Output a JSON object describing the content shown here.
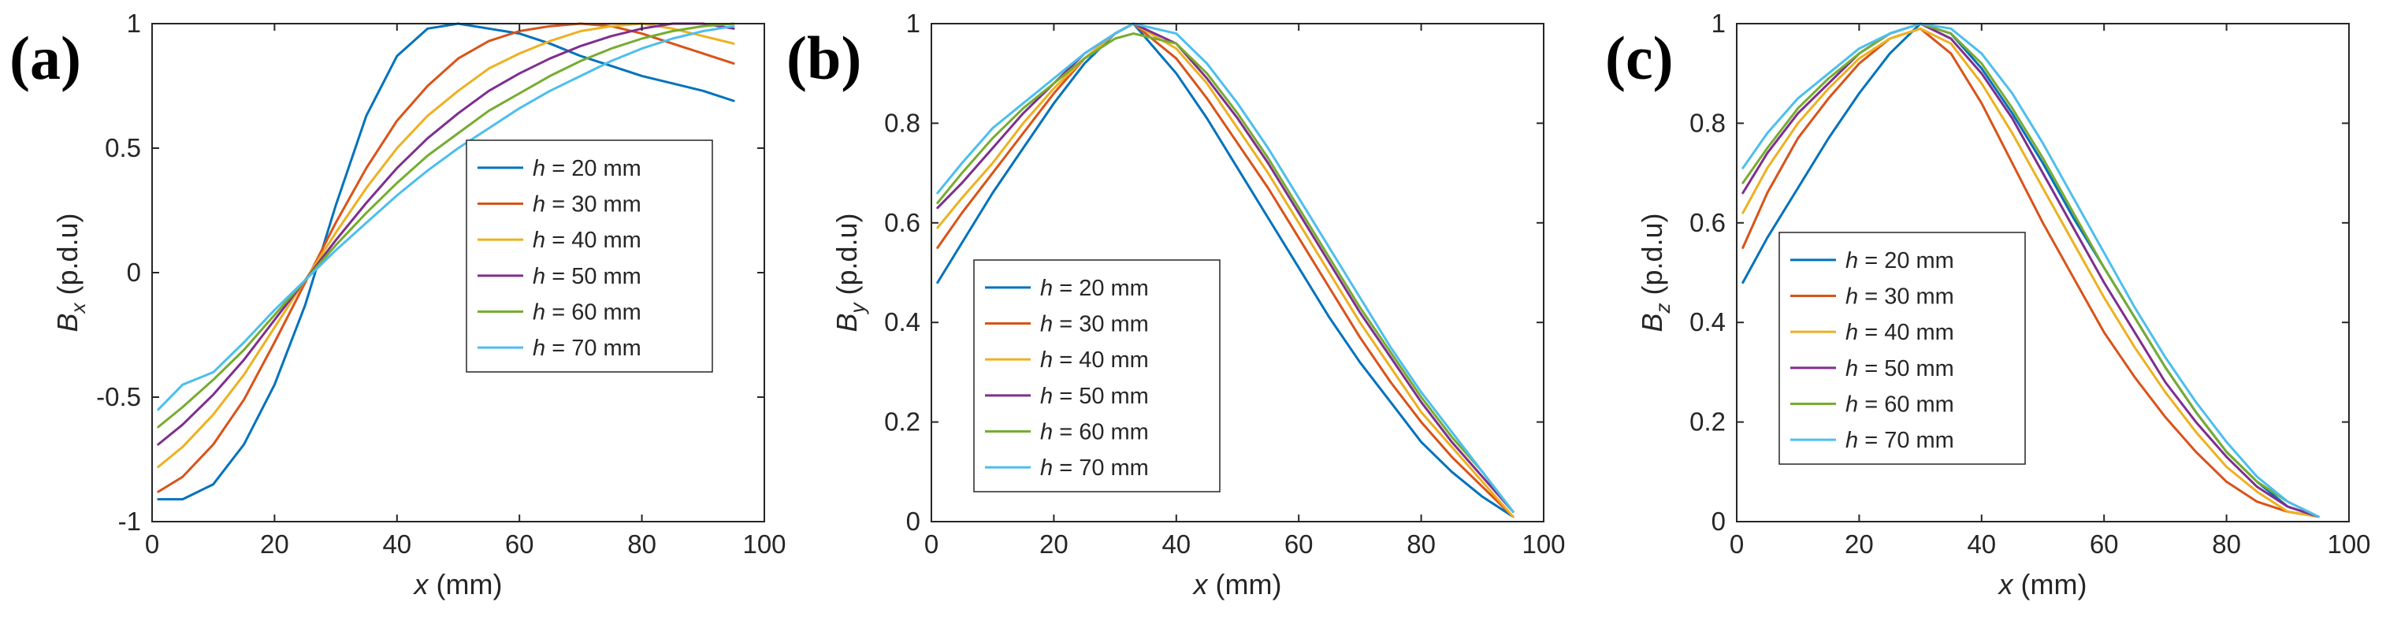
{
  "chart_data": [
    {
      "type": "line",
      "panel_label": "(a)",
      "xlabel_var": "x",
      "xlabel_unit": " (mm)",
      "ylabel_var": "B",
      "ylabel_sub": "x",
      "ylabel_unit": " (p.d.u)",
      "xlim": [
        0,
        100
      ],
      "ylim": [
        -1,
        1
      ],
      "xticks": [
        0,
        20,
        40,
        60,
        80,
        100
      ],
      "xtick_labels": [
        "0",
        "20",
        "40",
        "60",
        "80",
        "100"
      ],
      "yticks": [
        -1,
        -0.5,
        0,
        0.5,
        1
      ],
      "ytick_labels": [
        "-1",
        "-0.5",
        "0",
        "0.5",
        "1"
      ],
      "legend_position": "center-right",
      "series": [
        {
          "name": "h = 20 mm",
          "label_var": "h",
          "label_rest": " = 20 mm",
          "color": "#0072BD",
          "x": [
            1,
            5,
            10,
            15,
            20,
            25,
            30,
            35,
            40,
            45,
            50,
            55,
            60,
            65,
            70,
            75,
            80,
            85,
            90,
            95
          ],
          "y": [
            -0.91,
            -0.91,
            -0.85,
            -0.69,
            -0.45,
            -0.13,
            0.27,
            0.63,
            0.87,
            0.98,
            1.0,
            0.98,
            0.96,
            0.92,
            0.87,
            0.83,
            0.79,
            0.76,
            0.73,
            0.69
          ]
        },
        {
          "name": "h = 30 mm",
          "label_var": "h",
          "label_rest": " = 30 mm",
          "color": "#D95319",
          "x": [
            1,
            5,
            10,
            15,
            20,
            25,
            30,
            35,
            40,
            45,
            50,
            55,
            60,
            65,
            70,
            75,
            80,
            85,
            90,
            95
          ],
          "y": [
            -0.88,
            -0.82,
            -0.69,
            -0.51,
            -0.28,
            -0.04,
            0.2,
            0.42,
            0.61,
            0.75,
            0.86,
            0.93,
            0.97,
            0.99,
            1.0,
            0.99,
            0.96,
            0.92,
            0.88,
            0.84
          ]
        },
        {
          "name": "h = 40 mm",
          "label_var": "h",
          "label_rest": " = 40 mm",
          "color": "#EDB120",
          "x": [
            1,
            5,
            10,
            15,
            20,
            25,
            30,
            35,
            40,
            45,
            50,
            55,
            60,
            65,
            70,
            75,
            80,
            85,
            90,
            95
          ],
          "y": [
            -0.78,
            -0.7,
            -0.57,
            -0.41,
            -0.22,
            -0.03,
            0.16,
            0.34,
            0.5,
            0.63,
            0.73,
            0.82,
            0.88,
            0.93,
            0.97,
            0.99,
            1.0,
            0.98,
            0.95,
            0.92
          ]
        },
        {
          "name": "h = 50 mm",
          "label_var": "h",
          "label_rest": " = 50 mm",
          "color": "#7E2F8E",
          "x": [
            1,
            5,
            10,
            15,
            20,
            25,
            30,
            35,
            40,
            45,
            50,
            55,
            60,
            65,
            70,
            75,
            80,
            85,
            90,
            95
          ],
          "y": [
            -0.69,
            -0.61,
            -0.49,
            -0.35,
            -0.19,
            -0.03,
            0.13,
            0.28,
            0.42,
            0.54,
            0.64,
            0.73,
            0.8,
            0.86,
            0.91,
            0.95,
            0.98,
            1.0,
            1.0,
            0.98
          ]
        },
        {
          "name": "h = 60 mm",
          "label_var": "h",
          "label_rest": " = 60 mm",
          "color": "#77AC30",
          "x": [
            1,
            5,
            10,
            15,
            20,
            25,
            30,
            35,
            40,
            45,
            50,
            55,
            60,
            65,
            70,
            75,
            80,
            85,
            90,
            95
          ],
          "y": [
            -0.62,
            -0.54,
            -0.43,
            -0.31,
            -0.17,
            -0.03,
            0.11,
            0.24,
            0.36,
            0.47,
            0.56,
            0.65,
            0.72,
            0.79,
            0.85,
            0.9,
            0.94,
            0.97,
            0.99,
            1.0
          ]
        },
        {
          "name": "h = 70 mm",
          "label_var": "h",
          "label_rest": " = 70 mm",
          "color": "#4DBEEE",
          "x": [
            1,
            5,
            10,
            15,
            20,
            25,
            30,
            35,
            40,
            45,
            50,
            55,
            60,
            65,
            70,
            75,
            80,
            85,
            90,
            95
          ],
          "y": [
            -0.55,
            -0.45,
            -0.4,
            -0.28,
            -0.15,
            -0.03,
            0.09,
            0.2,
            0.31,
            0.41,
            0.5,
            0.58,
            0.66,
            0.73,
            0.79,
            0.85,
            0.9,
            0.94,
            0.97,
            0.99
          ]
        }
      ]
    },
    {
      "type": "line",
      "panel_label": "(b)",
      "xlabel_var": "x",
      "xlabel_unit": " (mm)",
      "ylabel_var": "B",
      "ylabel_sub": "y",
      "ylabel_unit": " (p.d.u)",
      "xlim": [
        0,
        100
      ],
      "ylim": [
        0,
        1
      ],
      "xticks": [
        0,
        20,
        40,
        60,
        80,
        100
      ],
      "xtick_labels": [
        "0",
        "20",
        "40",
        "60",
        "80",
        "100"
      ],
      "yticks": [
        0,
        0.2,
        0.4,
        0.6,
        0.8,
        1
      ],
      "ytick_labels": [
        "0",
        "0.2",
        "0.4",
        "0.6",
        "0.8",
        "1"
      ],
      "legend_position": "bottom-left",
      "series": [
        {
          "name": "h = 20 mm",
          "label_var": "h",
          "label_rest": " = 20 mm",
          "color": "#0072BD",
          "x": [
            1,
            5,
            10,
            15,
            20,
            25,
            30,
            33,
            40,
            45,
            50,
            55,
            60,
            65,
            70,
            75,
            80,
            85,
            90,
            95
          ],
          "y": [
            0.48,
            0.56,
            0.66,
            0.75,
            0.84,
            0.92,
            0.98,
            1.0,
            0.9,
            0.81,
            0.71,
            0.61,
            0.51,
            0.41,
            0.32,
            0.24,
            0.16,
            0.1,
            0.05,
            0.01
          ]
        },
        {
          "name": "h = 30 mm",
          "label_var": "h",
          "label_rest": " = 30 mm",
          "color": "#D95319",
          "x": [
            1,
            5,
            10,
            15,
            20,
            25,
            30,
            33,
            40,
            45,
            50,
            55,
            60,
            65,
            70,
            75,
            80,
            85,
            90,
            95
          ],
          "y": [
            0.55,
            0.62,
            0.7,
            0.78,
            0.86,
            0.93,
            0.98,
            1.0,
            0.93,
            0.85,
            0.76,
            0.67,
            0.57,
            0.47,
            0.37,
            0.28,
            0.2,
            0.13,
            0.07,
            0.01
          ]
        },
        {
          "name": "h = 40 mm",
          "label_var": "h",
          "label_rest": " = 40 mm",
          "color": "#EDB120",
          "x": [
            1,
            5,
            10,
            15,
            20,
            25,
            30,
            33,
            40,
            45,
            50,
            55,
            60,
            65,
            70,
            75,
            80,
            85,
            90,
            95
          ],
          "y": [
            0.59,
            0.65,
            0.72,
            0.8,
            0.87,
            0.93,
            0.98,
            1.0,
            0.95,
            0.88,
            0.79,
            0.7,
            0.6,
            0.5,
            0.4,
            0.31,
            0.22,
            0.15,
            0.08,
            0.01
          ]
        },
        {
          "name": "h = 50 mm",
          "label_var": "h",
          "label_rest": " = 50 mm",
          "color": "#7E2F8E",
          "x": [
            1,
            5,
            10,
            15,
            20,
            25,
            30,
            33,
            40,
            45,
            50,
            55,
            60,
            65,
            70,
            75,
            80,
            85,
            90,
            95
          ],
          "y": [
            0.63,
            0.68,
            0.75,
            0.82,
            0.88,
            0.94,
            0.98,
            1.0,
            0.96,
            0.89,
            0.81,
            0.72,
            0.62,
            0.52,
            0.42,
            0.33,
            0.24,
            0.16,
            0.09,
            0.02
          ]
        },
        {
          "name": "h = 60 mm",
          "label_var": "h",
          "label_rest": " = 60 mm",
          "color": "#77AC30",
          "x": [
            1,
            5,
            10,
            15,
            20,
            25,
            30,
            33,
            40,
            45,
            50,
            55,
            60,
            65,
            70,
            75,
            80,
            85,
            90,
            95
          ],
          "y": [
            0.64,
            0.7,
            0.77,
            0.83,
            0.88,
            0.93,
            0.97,
            0.98,
            0.96,
            0.9,
            0.82,
            0.73,
            0.63,
            0.53,
            0.43,
            0.34,
            0.25,
            0.17,
            0.1,
            0.02
          ]
        },
        {
          "name": "h = 70 mm",
          "label_var": "h",
          "label_rest": " = 70 mm",
          "color": "#4DBEEE",
          "x": [
            1,
            5,
            10,
            15,
            20,
            25,
            30,
            33,
            40,
            45,
            50,
            55,
            60,
            65,
            70,
            75,
            80,
            85,
            90,
            95
          ],
          "y": [
            0.66,
            0.72,
            0.79,
            0.84,
            0.89,
            0.94,
            0.98,
            1.0,
            0.98,
            0.92,
            0.84,
            0.75,
            0.65,
            0.55,
            0.45,
            0.35,
            0.26,
            0.18,
            0.1,
            0.02
          ]
        }
      ]
    },
    {
      "type": "line",
      "panel_label": "(c)",
      "xlabel_var": "x",
      "xlabel_unit": " (mm)",
      "ylabel_var": "B",
      "ylabel_sub": "z",
      "ylabel_unit": " (p.d.u)",
      "xlim": [
        0,
        100
      ],
      "ylim": [
        0,
        1
      ],
      "xticks": [
        0,
        20,
        40,
        60,
        80,
        100
      ],
      "xtick_labels": [
        "0",
        "20",
        "40",
        "60",
        "80",
        "100"
      ],
      "yticks": [
        0,
        0.2,
        0.4,
        0.6,
        0.8,
        1
      ],
      "ytick_labels": [
        "0",
        "0.2",
        "0.4",
        "0.6",
        "0.8",
        "1"
      ],
      "legend_position": "bottom-left",
      "series": [
        {
          "name": "h = 20 mm",
          "label_var": "h",
          "label_rest": " = 20 mm",
          "color": "#0072BD",
          "x": [
            1,
            5,
            10,
            15,
            20,
            25,
            30,
            35,
            40,
            45,
            50,
            55,
            60,
            65,
            70,
            75,
            80,
            85,
            90,
            95
          ],
          "y": [
            0.48,
            0.57,
            0.67,
            0.77,
            0.86,
            0.94,
            1.0,
            0.98,
            0.91,
            0.82,
            0.72,
            0.61,
            0.51,
            0.41,
            0.31,
            0.22,
            0.14,
            0.08,
            0.03,
            0.01
          ]
        },
        {
          "name": "h = 30 mm",
          "label_var": "h",
          "label_rest": " = 30 mm",
          "color": "#D95319",
          "x": [
            1,
            5,
            10,
            15,
            20,
            25,
            30,
            35,
            40,
            45,
            50,
            55,
            60,
            65,
            70,
            75,
            80,
            85,
            90,
            95
          ],
          "y": [
            0.55,
            0.66,
            0.77,
            0.85,
            0.92,
            0.97,
            0.99,
            0.94,
            0.84,
            0.72,
            0.6,
            0.49,
            0.38,
            0.29,
            0.21,
            0.14,
            0.08,
            0.04,
            0.02,
            0.01
          ]
        },
        {
          "name": "h = 40 mm",
          "label_var": "h",
          "label_rest": " = 40 mm",
          "color": "#EDB120",
          "x": [
            1,
            5,
            10,
            15,
            20,
            25,
            30,
            35,
            40,
            45,
            50,
            55,
            60,
            65,
            70,
            75,
            80,
            85,
            90,
            95
          ],
          "y": [
            0.62,
            0.71,
            0.8,
            0.87,
            0.93,
            0.97,
            0.99,
            0.96,
            0.88,
            0.78,
            0.67,
            0.56,
            0.45,
            0.35,
            0.26,
            0.18,
            0.11,
            0.06,
            0.02,
            0.01
          ]
        },
        {
          "name": "h = 50 mm",
          "label_var": "h",
          "label_rest": " = 50 mm",
          "color": "#7E2F8E",
          "x": [
            1,
            5,
            10,
            15,
            20,
            25,
            30,
            35,
            40,
            45,
            50,
            55,
            60,
            65,
            70,
            75,
            80,
            85,
            90,
            95
          ],
          "y": [
            0.66,
            0.74,
            0.82,
            0.88,
            0.94,
            0.98,
            1.0,
            0.97,
            0.9,
            0.81,
            0.7,
            0.59,
            0.48,
            0.38,
            0.28,
            0.2,
            0.13,
            0.07,
            0.03,
            0.01
          ]
        },
        {
          "name": "h = 60 mm",
          "label_var": "h",
          "label_rest": " = 60 mm",
          "color": "#77AC30",
          "x": [
            1,
            5,
            10,
            15,
            20,
            25,
            30,
            35,
            40,
            45,
            50,
            55,
            60,
            65,
            70,
            75,
            80,
            85,
            90,
            95
          ],
          "y": [
            0.68,
            0.75,
            0.83,
            0.89,
            0.94,
            0.98,
            1.0,
            0.98,
            0.92,
            0.83,
            0.73,
            0.62,
            0.51,
            0.41,
            0.31,
            0.22,
            0.14,
            0.08,
            0.04,
            0.01
          ]
        },
        {
          "name": "h = 70 mm",
          "label_var": "h",
          "label_rest": " = 70 mm",
          "color": "#4DBEEE",
          "x": [
            1,
            5,
            10,
            15,
            20,
            25,
            30,
            35,
            40,
            45,
            50,
            55,
            60,
            65,
            70,
            75,
            80,
            85,
            90,
            95
          ],
          "y": [
            0.71,
            0.78,
            0.85,
            0.9,
            0.95,
            0.98,
            1.0,
            0.99,
            0.94,
            0.86,
            0.76,
            0.65,
            0.54,
            0.43,
            0.33,
            0.24,
            0.16,
            0.09,
            0.04,
            0.01
          ]
        }
      ]
    }
  ]
}
